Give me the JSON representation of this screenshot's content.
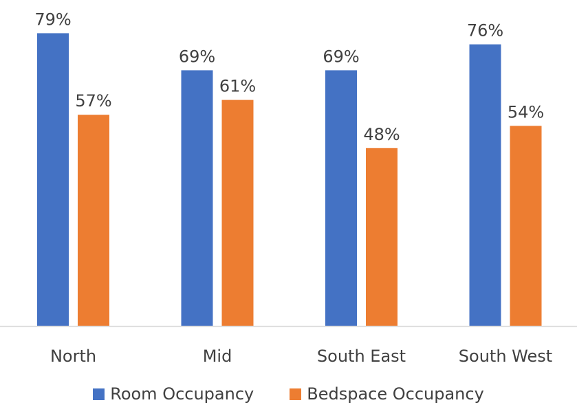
{
  "chart_data": {
    "type": "bar",
    "categories": [
      "North",
      "Mid",
      "South East",
      "South West"
    ],
    "series": [
      {
        "name": "Room Occupancy",
        "values": [
          79,
          69,
          69,
          76
        ],
        "labels": [
          "79%",
          "69%",
          "69%",
          "76%"
        ],
        "color": "#4472C4"
      },
      {
        "name": "Bedspace Occupancy",
        "values": [
          57,
          61,
          48,
          54
        ],
        "labels": [
          "57%",
          "61%",
          "48%",
          "54%"
        ],
        "color": "#ED7D31"
      }
    ],
    "ylim": [
      0,
      100
    ],
    "grid": false,
    "legend": "bottom"
  }
}
